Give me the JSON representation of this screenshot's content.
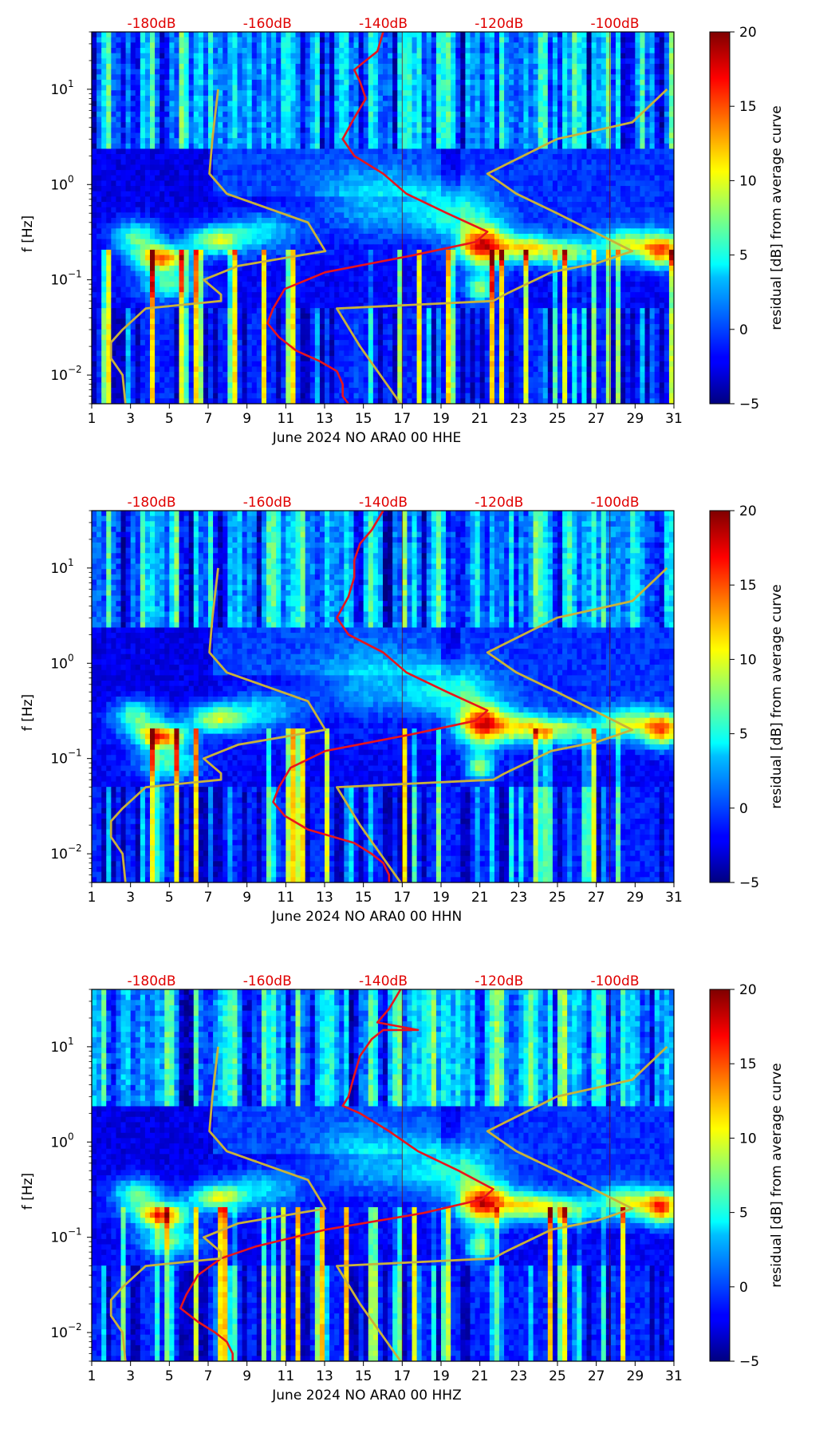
{
  "colors": {
    "red_curve": "#e8141c",
    "yellow_curve": "#c9b23a",
    "top_labels": "#e00000"
  },
  "colorbar": {
    "label": "residual [dB] from average curve",
    "ticks": [
      "20",
      "15",
      "10",
      "5",
      "0",
      "−5"
    ],
    "tick_values": [
      20,
      15,
      10,
      5,
      0,
      -5
    ],
    "range": [
      -5,
      20
    ],
    "colormap": "jet"
  },
  "chart_data": [
    {
      "type": "heatmap",
      "title": "June 2024 NO ARA0 00 HHE",
      "xlabel": "June 2024 NO ARA0 00 HHE",
      "ylabel": "f [Hz]",
      "x_ticks": [
        "1",
        "3",
        "5",
        "7",
        "9",
        "11",
        "13",
        "15",
        "17",
        "19",
        "21",
        "23",
        "25",
        "27",
        "29",
        "31"
      ],
      "xlim": [
        1,
        31
      ],
      "y_scale": "log",
      "ylim": [
        0.005,
        40
      ],
      "y_ticks": [
        {
          "base": "10",
          "exp": "1"
        },
        {
          "base": "10",
          "exp": "0"
        },
        {
          "base": "10",
          "exp": "−1"
        },
        {
          "base": "10",
          "exp": "−2"
        }
      ],
      "top_axis_labels": [
        "-180dB",
        "-160dB",
        "-140dB",
        "-120dB",
        "-100dB"
      ],
      "top_axis_values": [
        -180,
        -160,
        -140,
        -120,
        -100
      ],
      "series": [
        {
          "name": "red-average-curve",
          "points": [
            [
              40,
              -140
            ],
            [
              25,
              -141
            ],
            [
              20,
              -143
            ],
            [
              16,
              -145
            ],
            [
              12,
              -144
            ],
            [
              8,
              -143
            ],
            [
              5,
              -145
            ],
            [
              3,
              -147
            ],
            [
              2,
              -145
            ],
            [
              1.3,
              -140
            ],
            [
              0.8,
              -136
            ],
            [
              0.5,
              -129
            ],
            [
              0.32,
              -122
            ],
            [
              0.25,
              -124
            ],
            [
              0.18,
              -135
            ],
            [
              0.12,
              -150
            ],
            [
              0.08,
              -157
            ],
            [
              0.05,
              -159
            ],
            [
              0.035,
              -160
            ],
            [
              0.025,
              -158
            ],
            [
              0.018,
              -155
            ],
            [
              0.014,
              -151
            ],
            [
              0.011,
              -148
            ],
            [
              0.008,
              -147
            ],
            [
              0.006,
              -147
            ],
            [
              0.005,
              -146
            ]
          ]
        },
        {
          "name": "yellow-low-noise-model",
          "points": [
            [
              10,
              -168.5
            ],
            [
              3,
              -169.5
            ],
            [
              1.3,
              -170
            ],
            [
              0.8,
              -167
            ],
            [
              0.4,
              -153
            ],
            [
              0.2,
              -150
            ],
            [
              0.14,
              -165
            ],
            [
              0.1,
              -171
            ],
            [
              0.07,
              -168
            ],
            [
              0.06,
              -168
            ],
            [
              0.05,
              -181
            ],
            [
              0.03,
              -185
            ],
            [
              0.022,
              -187
            ],
            [
              0.015,
              -187
            ],
            [
              0.01,
              -185
            ],
            [
              0.005,
              -184.5
            ]
          ]
        },
        {
          "name": "yellow-high-noise-model",
          "points": [
            [
              10,
              -91
            ],
            [
              4.5,
              -97
            ],
            [
              3,
              -110
            ],
            [
              1.3,
              -122
            ],
            [
              0.8,
              -117
            ],
            [
              0.5,
              -110
            ],
            [
              0.2,
              -97
            ],
            [
              0.15,
              -103
            ],
            [
              0.12,
              -111
            ],
            [
              0.07,
              -119
            ],
            [
              0.06,
              -121
            ],
            [
              0.05,
              -148
            ],
            [
              0.02,
              -144
            ],
            [
              0.005,
              -137
            ]
          ]
        }
      ]
    },
    {
      "type": "heatmap",
      "title": "June 2024 NO ARA0 00 HHN",
      "xlabel": "June 2024 NO ARA0 00 HHN",
      "ylabel": "f [Hz]",
      "x_ticks": [
        "1",
        "3",
        "5",
        "7",
        "9",
        "11",
        "13",
        "15",
        "17",
        "19",
        "21",
        "23",
        "25",
        "27",
        "29",
        "31"
      ],
      "xlim": [
        1,
        31
      ],
      "y_scale": "log",
      "ylim": [
        0.005,
        40
      ],
      "y_ticks": [
        {
          "base": "10",
          "exp": "1"
        },
        {
          "base": "10",
          "exp": "0"
        },
        {
          "base": "10",
          "exp": "−1"
        },
        {
          "base": "10",
          "exp": "−2"
        }
      ],
      "top_axis_labels": [
        "-180dB",
        "-160dB",
        "-140dB",
        "-120dB",
        "-100dB"
      ],
      "top_axis_values": [
        -180,
        -160,
        -140,
        -120,
        -100
      ],
      "series": [
        {
          "name": "red-average-curve",
          "points": [
            [
              40,
              -140
            ],
            [
              25,
              -142
            ],
            [
              18,
              -144
            ],
            [
              12,
              -145
            ],
            [
              8,
              -145
            ],
            [
              5,
              -146
            ],
            [
              3,
              -148
            ],
            [
              2,
              -146
            ],
            [
              1.3,
              -140
            ],
            [
              0.8,
              -136
            ],
            [
              0.5,
              -129
            ],
            [
              0.32,
              -122
            ],
            [
              0.25,
              -124
            ],
            [
              0.18,
              -135
            ],
            [
              0.12,
              -150
            ],
            [
              0.08,
              -156
            ],
            [
              0.05,
              -158
            ],
            [
              0.035,
              -159
            ],
            [
              0.025,
              -157
            ],
            [
              0.018,
              -153
            ],
            [
              0.013,
              -145
            ],
            [
              0.01,
              -142
            ],
            [
              0.008,
              -140
            ],
            [
              0.006,
              -139
            ],
            [
              0.005,
              -139
            ]
          ]
        },
        {
          "name": "yellow-low-noise-model",
          "points": [
            [
              10,
              -168.5
            ],
            [
              3,
              -169.5
            ],
            [
              1.3,
              -170
            ],
            [
              0.8,
              -167
            ],
            [
              0.4,
              -153
            ],
            [
              0.2,
              -150
            ],
            [
              0.14,
              -165
            ],
            [
              0.1,
              -171
            ],
            [
              0.07,
              -168
            ],
            [
              0.06,
              -168
            ],
            [
              0.05,
              -181
            ],
            [
              0.03,
              -185
            ],
            [
              0.022,
              -187
            ],
            [
              0.015,
              -187
            ],
            [
              0.01,
              -185
            ],
            [
              0.005,
              -184.5
            ]
          ]
        },
        {
          "name": "yellow-high-noise-model",
          "points": [
            [
              10,
              -91
            ],
            [
              4.5,
              -97
            ],
            [
              3,
              -110
            ],
            [
              1.3,
              -122
            ],
            [
              0.8,
              -117
            ],
            [
              0.5,
              -110
            ],
            [
              0.2,
              -97
            ],
            [
              0.15,
              -103
            ],
            [
              0.12,
              -111
            ],
            [
              0.07,
              -119
            ],
            [
              0.06,
              -121
            ],
            [
              0.05,
              -148
            ],
            [
              0.02,
              -144
            ],
            [
              0.005,
              -137
            ]
          ]
        }
      ]
    },
    {
      "type": "heatmap",
      "title": "June 2024 NO ARA0 00 HHZ",
      "xlabel": "June 2024 NO ARA0 00 HHZ",
      "ylabel": "f [Hz]",
      "x_ticks": [
        "1",
        "3",
        "5",
        "7",
        "9",
        "11",
        "13",
        "15",
        "17",
        "19",
        "21",
        "23",
        "25",
        "27",
        "29",
        "31"
      ],
      "xlim": [
        1,
        31
      ],
      "y_scale": "log",
      "ylim": [
        0.005,
        40
      ],
      "y_ticks": [
        {
          "base": "10",
          "exp": "1"
        },
        {
          "base": "10",
          "exp": "0"
        },
        {
          "base": "10",
          "exp": "−1"
        },
        {
          "base": "10",
          "exp": "−2"
        }
      ],
      "top_axis_labels": [
        "-180dB",
        "-160dB",
        "-140dB",
        "-120dB",
        "-100dB"
      ],
      "top_axis_values": [
        -180,
        -160,
        -140,
        -120,
        -100
      ],
      "series": [
        {
          "name": "red-average-curve",
          "points": [
            [
              40,
              -137
            ],
            [
              25,
              -139
            ],
            [
              18,
              -141
            ],
            [
              15,
              -134
            ],
            [
              15,
              -140
            ],
            [
              12,
              -142
            ],
            [
              8,
              -144
            ],
            [
              5,
              -145
            ],
            [
              3,
              -146
            ],
            [
              2.4,
              -147
            ],
            [
              2,
              -144
            ],
            [
              1.3,
              -139
            ],
            [
              0.8,
              -134
            ],
            [
              0.5,
              -127
            ],
            [
              0.32,
              -121
            ],
            [
              0.25,
              -123
            ],
            [
              0.18,
              -133
            ],
            [
              0.12,
              -150
            ],
            [
              0.08,
              -162
            ],
            [
              0.06,
              -168
            ],
            [
              0.04,
              -172
            ],
            [
              0.025,
              -174
            ],
            [
              0.018,
              -175
            ],
            [
              0.013,
              -172
            ],
            [
              0.01,
              -169
            ],
            [
              0.008,
              -167
            ],
            [
              0.006,
              -166
            ],
            [
              0.005,
              -166
            ]
          ]
        },
        {
          "name": "yellow-low-noise-model",
          "points": [
            [
              10,
              -168.5
            ],
            [
              3,
              -169.5
            ],
            [
              1.3,
              -170
            ],
            [
              0.8,
              -167
            ],
            [
              0.4,
              -153
            ],
            [
              0.2,
              -150
            ],
            [
              0.14,
              -165
            ],
            [
              0.1,
              -171
            ],
            [
              0.07,
              -168
            ],
            [
              0.06,
              -168
            ],
            [
              0.05,
              -181
            ],
            [
              0.03,
              -185
            ],
            [
              0.022,
              -187
            ],
            [
              0.015,
              -187
            ],
            [
              0.01,
              -185
            ],
            [
              0.005,
              -184.5
            ]
          ]
        },
        {
          "name": "yellow-high-noise-model",
          "points": [
            [
              10,
              -91
            ],
            [
              4.5,
              -97
            ],
            [
              3,
              -110
            ],
            [
              1.3,
              -122
            ],
            [
              0.8,
              -117
            ],
            [
              0.5,
              -110
            ],
            [
              0.2,
              -97
            ],
            [
              0.15,
              -103
            ],
            [
              0.12,
              -111
            ],
            [
              0.07,
              -119
            ],
            [
              0.06,
              -121
            ],
            [
              0.05,
              -148
            ],
            [
              0.02,
              -144
            ],
            [
              0.005,
              -137
            ]
          ]
        }
      ]
    }
  ]
}
